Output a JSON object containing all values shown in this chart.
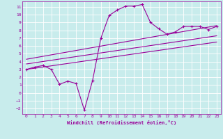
{
  "xlabel": "Windchill (Refroidissement éolien,°C)",
  "bg_color": "#c8ecec",
  "grid_color": "#ffffff",
  "line_color": "#990099",
  "xlim": [
    -0.5,
    23.5
  ],
  "ylim": [
    -2.7,
    11.7
  ],
  "xticks": [
    0,
    1,
    2,
    3,
    4,
    5,
    6,
    7,
    8,
    9,
    10,
    11,
    12,
    13,
    14,
    15,
    16,
    17,
    18,
    19,
    20,
    21,
    22,
    23
  ],
  "yticks": [
    -2,
    -1,
    0,
    1,
    2,
    3,
    4,
    5,
    6,
    7,
    8,
    9,
    10,
    11
  ],
  "scatter_x": [
    0,
    1,
    2,
    3,
    4,
    5,
    6,
    7,
    8,
    9,
    10,
    11,
    12,
    13,
    14,
    15,
    16,
    17,
    18,
    19,
    20,
    21,
    22,
    23
  ],
  "scatter_y": [
    3.0,
    3.3,
    3.5,
    3.0,
    1.1,
    1.5,
    1.2,
    -2.2,
    1.6,
    7.0,
    9.9,
    10.6,
    11.1,
    11.1,
    11.3,
    9.0,
    8.2,
    7.5,
    7.8,
    8.5,
    8.5,
    8.5,
    8.1,
    8.5
  ],
  "line1_x": [
    0,
    23
  ],
  "line1_y": [
    3.0,
    6.5
  ],
  "line2_x": [
    0,
    23
  ],
  "line2_y": [
    3.7,
    7.3
  ],
  "line3_x": [
    0,
    23
  ],
  "line3_y": [
    4.3,
    8.6
  ]
}
